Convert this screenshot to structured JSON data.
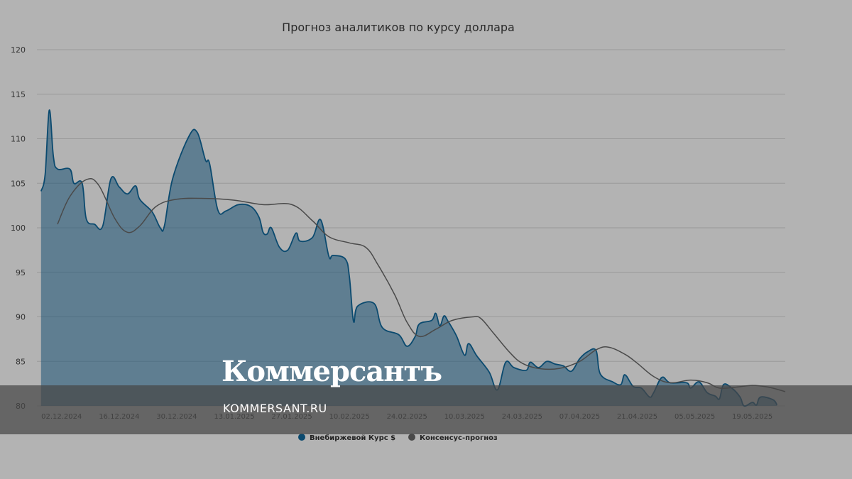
{
  "chart_data": {
    "type": "area",
    "title": "Прогноз аналитиков по курсу доллара",
    "ylim": [
      80,
      120
    ],
    "yticks": [
      80,
      85,
      90,
      95,
      100,
      105,
      110,
      115,
      120
    ],
    "xlim": [
      "2024-11-26",
      "2025-05-27"
    ],
    "xtick_labels": [
      "02.12.2024",
      "16.12.2024",
      "30.12.2024",
      "13.01.2025",
      "27.01.2025",
      "10.02.2025",
      "24.02.2025",
      "10.03.2025",
      "24.03.2025",
      "07.04.2025",
      "21.04.2025",
      "05.05.2025",
      "19.05.2025"
    ],
    "grid": true,
    "legend_position": "bottom-center",
    "series": [
      {
        "name": "Внебиржевой Курс $",
        "type": "area",
        "color": "#0b4a6f",
        "points": [
          [
            "2024-11-27",
            104.1
          ],
          [
            "2024-11-28",
            106.0
          ],
          [
            "2024-11-29",
            113.2
          ],
          [
            "2024-11-30",
            108.0
          ],
          [
            "2024-12-01",
            106.6
          ],
          [
            "2024-12-04",
            106.6
          ],
          [
            "2024-12-05",
            105.0
          ],
          [
            "2024-12-07",
            105.0
          ],
          [
            "2024-12-08",
            101.0
          ],
          [
            "2024-12-10",
            100.4
          ],
          [
            "2024-12-12",
            100.2
          ],
          [
            "2024-12-14",
            105.5
          ],
          [
            "2024-12-16",
            104.6
          ],
          [
            "2024-12-18",
            103.8
          ],
          [
            "2024-12-20",
            104.7
          ],
          [
            "2024-12-21",
            103.2
          ],
          [
            "2024-12-24",
            101.8
          ],
          [
            "2024-12-26",
            100.0
          ],
          [
            "2024-12-27",
            100.2
          ],
          [
            "2024-12-29",
            105.5
          ],
          [
            "2025-01-02",
            110.3
          ],
          [
            "2025-01-04",
            110.7
          ],
          [
            "2025-01-06",
            107.6
          ],
          [
            "2025-01-07",
            107.2
          ],
          [
            "2025-01-09",
            102.0
          ],
          [
            "2025-01-11",
            101.9
          ],
          [
            "2025-01-14",
            102.6
          ],
          [
            "2025-01-17",
            102.4
          ],
          [
            "2025-01-19",
            101.2
          ],
          [
            "2025-01-20",
            99.5
          ],
          [
            "2025-01-21",
            99.3
          ],
          [
            "2025-01-22",
            100.0
          ],
          [
            "2025-01-24",
            97.8
          ],
          [
            "2025-01-26",
            97.5
          ],
          [
            "2025-01-28",
            99.4
          ],
          [
            "2025-01-29",
            98.5
          ],
          [
            "2025-02-01",
            98.9
          ],
          [
            "2025-02-03",
            100.9
          ],
          [
            "2025-02-05",
            96.8
          ],
          [
            "2025-02-06",
            96.9
          ],
          [
            "2025-02-09",
            96.5
          ],
          [
            "2025-02-10",
            94.5
          ],
          [
            "2025-02-11",
            89.5
          ],
          [
            "2025-02-12",
            91.2
          ],
          [
            "2025-02-16",
            91.5
          ],
          [
            "2025-02-18",
            88.8
          ],
          [
            "2025-02-22",
            88.0
          ],
          [
            "2025-02-24",
            86.7
          ],
          [
            "2025-02-26",
            87.8
          ],
          [
            "2025-02-27",
            89.2
          ],
          [
            "2025-03-02",
            89.6
          ],
          [
            "2025-03-03",
            90.4
          ],
          [
            "2025-03-04",
            89.0
          ],
          [
            "2025-03-05",
            90.1
          ],
          [
            "2025-03-06",
            89.5
          ],
          [
            "2025-03-08",
            87.9
          ],
          [
            "2025-03-10",
            85.7
          ],
          [
            "2025-03-11",
            87.0
          ],
          [
            "2025-03-13",
            85.6
          ],
          [
            "2025-03-16",
            83.8
          ],
          [
            "2025-03-18",
            81.8
          ],
          [
            "2025-03-20",
            84.9
          ],
          [
            "2025-03-22",
            84.3
          ],
          [
            "2025-03-25",
            84.0
          ],
          [
            "2025-03-26",
            84.9
          ],
          [
            "2025-03-28",
            84.3
          ],
          [
            "2025-03-30",
            85.0
          ],
          [
            "2025-04-01",
            84.7
          ],
          [
            "2025-04-03",
            84.5
          ],
          [
            "2025-04-05",
            83.9
          ],
          [
            "2025-04-07",
            85.3
          ],
          [
            "2025-04-09",
            86.1
          ],
          [
            "2025-04-11",
            86.2
          ],
          [
            "2025-04-12",
            83.6
          ],
          [
            "2025-04-15",
            82.7
          ],
          [
            "2025-04-17",
            82.4
          ],
          [
            "2025-04-18",
            83.5
          ],
          [
            "2025-04-20",
            82.2
          ],
          [
            "2025-04-22",
            82.0
          ],
          [
            "2025-04-24",
            81.0
          ],
          [
            "2025-04-25",
            81.5
          ],
          [
            "2025-04-27",
            83.2
          ],
          [
            "2025-04-29",
            82.6
          ],
          [
            "2025-05-03",
            82.6
          ],
          [
            "2025-05-04",
            82.0
          ],
          [
            "2025-05-06",
            82.7
          ],
          [
            "2025-05-08",
            81.5
          ],
          [
            "2025-05-10",
            81.1
          ],
          [
            "2025-05-11",
            80.8
          ],
          [
            "2025-05-12",
            82.4
          ],
          [
            "2025-05-14",
            82.0
          ],
          [
            "2025-05-16",
            81.0
          ],
          [
            "2025-05-17",
            80.0
          ],
          [
            "2025-05-19",
            80.4
          ],
          [
            "2025-05-20",
            80.1
          ],
          [
            "2025-05-21",
            81.0
          ],
          [
            "2025-05-24",
            80.7
          ],
          [
            "2025-05-25",
            80.1
          ]
        ]
      },
      {
        "name": "Консенсус-прогноз",
        "type": "line",
        "color": "#4a4a4a",
        "points": [
          [
            "2024-12-01",
            100.4
          ],
          [
            "2024-12-04",
            103.5
          ],
          [
            "2024-12-08",
            105.4
          ],
          [
            "2024-12-11",
            104.8
          ],
          [
            "2024-12-15",
            101.0
          ],
          [
            "2024-12-18",
            99.5
          ],
          [
            "2024-12-21",
            100.2
          ],
          [
            "2024-12-25",
            102.4
          ],
          [
            "2024-12-30",
            103.2
          ],
          [
            "2025-01-06",
            103.3
          ],
          [
            "2025-01-13",
            103.1
          ],
          [
            "2025-01-20",
            102.6
          ],
          [
            "2025-01-27",
            102.6
          ],
          [
            "2025-02-01",
            100.8
          ],
          [
            "2025-02-05",
            99.0
          ],
          [
            "2025-02-10",
            98.3
          ],
          [
            "2025-02-14",
            97.8
          ],
          [
            "2025-02-17",
            95.8
          ],
          [
            "2025-02-21",
            92.5
          ],
          [
            "2025-02-24",
            89.4
          ],
          [
            "2025-02-27",
            87.8
          ],
          [
            "2025-03-03",
            88.6
          ],
          [
            "2025-03-07",
            89.6
          ],
          [
            "2025-03-12",
            90.0
          ],
          [
            "2025-03-14",
            89.8
          ],
          [
            "2025-03-17",
            88.2
          ],
          [
            "2025-03-21",
            86.0
          ],
          [
            "2025-03-24",
            84.8
          ],
          [
            "2025-03-28",
            84.2
          ],
          [
            "2025-04-02",
            84.2
          ],
          [
            "2025-04-07",
            85.0
          ],
          [
            "2025-04-11",
            86.3
          ],
          [
            "2025-04-14",
            86.6
          ],
          [
            "2025-04-18",
            85.8
          ],
          [
            "2025-04-21",
            84.8
          ],
          [
            "2025-04-25",
            83.3
          ],
          [
            "2025-04-29",
            82.6
          ],
          [
            "2025-05-04",
            82.9
          ],
          [
            "2025-05-08",
            82.6
          ],
          [
            "2025-05-11",
            82.0
          ],
          [
            "2025-05-15",
            82.1
          ],
          [
            "2025-05-19",
            82.3
          ],
          [
            "2025-05-23",
            82.1
          ],
          [
            "2025-05-27",
            81.6
          ]
        ]
      }
    ]
  },
  "watermark": {
    "logo": "Коммерсантъ",
    "url": "KOMMERSANT.RU"
  }
}
